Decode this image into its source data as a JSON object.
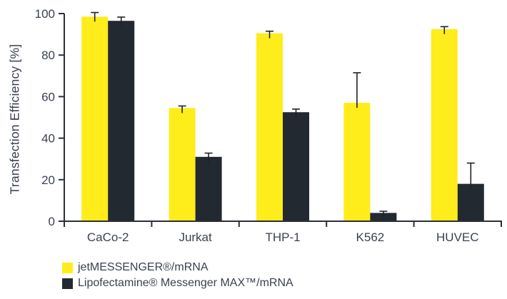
{
  "chart_data": {
    "type": "bar",
    "title": "",
    "ylabel": "Transfection Efficiency [%]",
    "xlabel": "",
    "ylim": [
      0,
      100
    ],
    "yticks": [
      0,
      20,
      40,
      60,
      80,
      100
    ],
    "grid": false,
    "legend_position": "bottom-left",
    "categories": [
      "CaCo-2",
      "Jurkat",
      "THP-1",
      "K562",
      "HUVEC"
    ],
    "series": [
      {
        "name": "jetMESSENGER®/mRNA",
        "color": "#ffec1b",
        "values": [
          98.5,
          54.5,
          90.5,
          57,
          92.5
        ],
        "errors_plus": [
          2,
          1,
          1,
          14.5,
          1.2
        ]
      },
      {
        "name": "Lipofectamine® Messenger MAX™/mRNA",
        "color": "#232931",
        "values": [
          96.5,
          31,
          52.5,
          4,
          18
        ],
        "errors_plus": [
          1.8,
          1.8,
          1.5,
          0.8,
          10
        ]
      }
    ],
    "colors": {
      "axis": "#2b2f36",
      "text": "#3a424f",
      "error_bar": "#1e2227",
      "background": "#ffffff"
    }
  }
}
